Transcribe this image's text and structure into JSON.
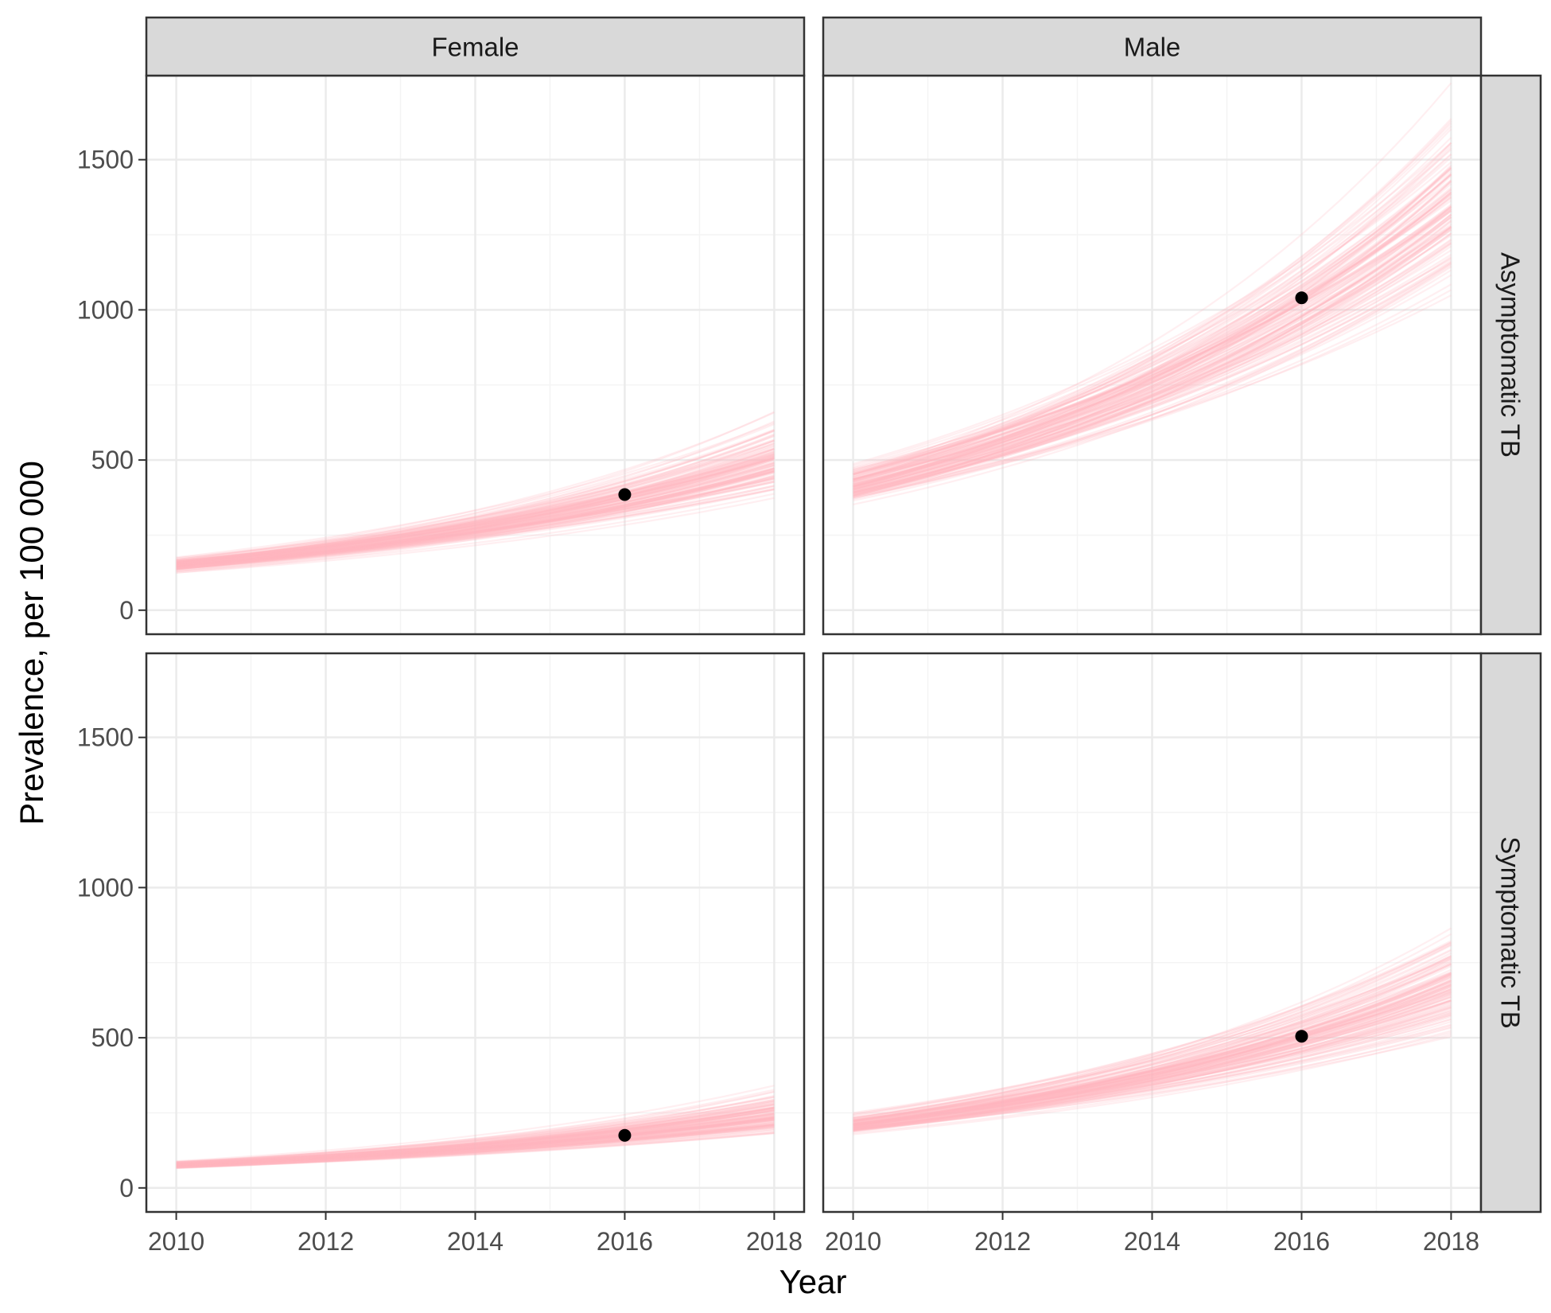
{
  "colors": {
    "background": "#ffffff",
    "grid_major": "#ebebeb",
    "grid_minor": "#f4f4f4",
    "panel_border": "#333333",
    "strip_fill": "#d9d9d9",
    "simulation_line": "#ffb6c1",
    "observed_point": "#000000"
  },
  "chart_data": {
    "type": "line",
    "xlabel": "Year",
    "ylabel": "Prevalence, per 100 000",
    "xlim": [
      2009.6,
      2018.4
    ],
    "ylim": [
      -80,
      1780
    ],
    "x_ticks": [
      2010,
      2012,
      2014,
      2016,
      2018
    ],
    "y_ticks": [
      0,
      500,
      1000,
      1500
    ],
    "x_minor_ticks": [
      2011,
      2013,
      2015,
      2017
    ],
    "y_minor_ticks": [
      250,
      750,
      1250
    ],
    "grid": true,
    "facet_columns": [
      "Female",
      "Male"
    ],
    "facet_rows": [
      "Asymptomatic TB",
      "Symptomatic TB"
    ],
    "simulation_runs": 120,
    "panels": [
      {
        "column": "Female",
        "row": "Asymptomatic TB",
        "simulated_median": {
          "x": [
            2010,
            2018
          ],
          "y": [
            150,
            495
          ]
        },
        "simulated_range_2018": [
          380,
          670
        ],
        "observed": {
          "x": 2016,
          "y": 385
        }
      },
      {
        "column": "Male",
        "row": "Asymptomatic TB",
        "simulated_median": {
          "x": [
            2010,
            2018
          ],
          "y": [
            420,
            1350
          ]
        },
        "simulated_range_2018": [
          1080,
          1700
        ],
        "observed": {
          "x": 2016,
          "y": 1040
        }
      },
      {
        "column": "Female",
        "row": "Symptomatic TB",
        "simulated_median": {
          "x": [
            2010,
            2018
          ],
          "y": [
            75,
            235
          ]
        },
        "simulated_range_2018": [
          160,
          340
        ],
        "observed": {
          "x": 2016,
          "y": 175
        }
      },
      {
        "column": "Male",
        "row": "Symptomatic TB",
        "simulated_median": {
          "x": [
            2010,
            2018
          ],
          "y": [
            210,
            670
          ]
        },
        "simulated_range_2018": [
          480,
          830
        ],
        "observed": {
          "x": 2016,
          "y": 505
        }
      }
    ]
  }
}
